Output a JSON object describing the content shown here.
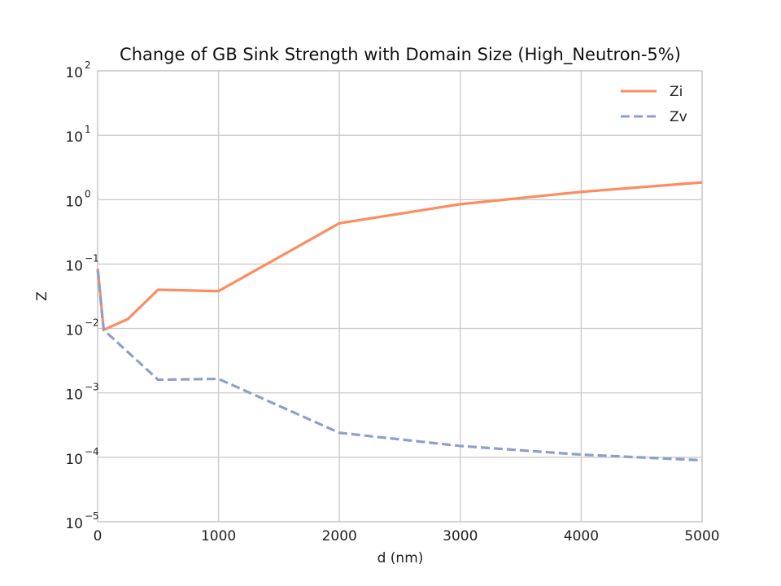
{
  "chart_data": {
    "type": "line",
    "title": "Change of GB Sink Strength with Domain Size (High_Neutron-5%)",
    "xlabel": "d (nm)",
    "ylabel": "Z",
    "xlim": [
      0,
      5000
    ],
    "ylim": [
      1e-05,
      100
    ],
    "yscale": "log",
    "grid": true,
    "legend_position": "top-right",
    "x_ticks": [
      "0",
      "1000",
      "2000",
      "3000",
      "4000",
      "5000"
    ],
    "y_ticks": [
      {
        "base": "10",
        "exp": "−5",
        "value": 1e-05
      },
      {
        "base": "10",
        "exp": "−4",
        "value": 0.0001
      },
      {
        "base": "10",
        "exp": "−3",
        "value": 0.001
      },
      {
        "base": "10",
        "exp": "−2",
        "value": 0.01
      },
      {
        "base": "10",
        "exp": "−1",
        "value": 0.1
      },
      {
        "base": "10",
        "exp": "0",
        "value": 1
      },
      {
        "base": "10",
        "exp": "1",
        "value": 10
      },
      {
        "base": "10",
        "exp": "2",
        "value": 100
      }
    ],
    "series": [
      {
        "name": "Zi",
        "color": "#fc8d62",
        "style": "solid",
        "x": [
          1,
          50,
          250,
          500,
          1000,
          2000,
          3000,
          4000,
          5000
        ],
        "y": [
          0.085,
          0.0095,
          0.014,
          0.04,
          0.038,
          0.43,
          0.85,
          1.32,
          1.85
        ]
      },
      {
        "name": "Zv",
        "color": "#8da0cb",
        "style": "dashed",
        "x": [
          1,
          50,
          500,
          1000,
          2000,
          3000,
          4000,
          5000
        ],
        "y": [
          0.08,
          0.0095,
          0.0016,
          0.00165,
          0.00024,
          0.00015,
          0.00011,
          9e-05
        ]
      }
    ]
  }
}
